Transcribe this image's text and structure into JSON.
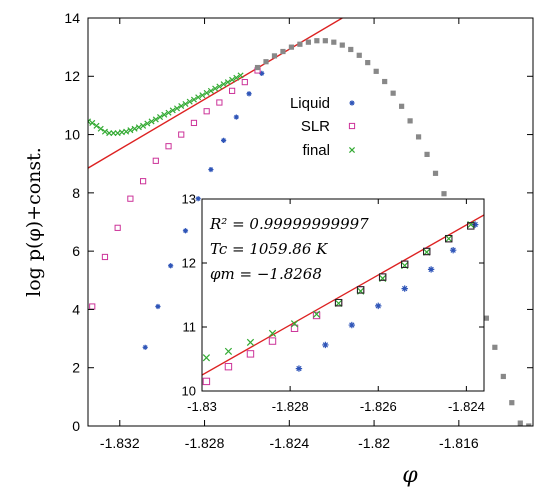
{
  "chart_data": [
    {
      "type": "scatter",
      "xlabel": "φ",
      "ylabel": "log p(φ)+const.",
      "xlim": [
        -1.8335,
        -1.8125
      ],
      "ylim": [
        0,
        14
      ],
      "xticks": [
        -1.832,
        -1.828,
        -1.824,
        -1.82,
        -1.816
      ],
      "xtick_labels": [
        "-1.832",
        "-1.828",
        "-1.824",
        "-1.82",
        "-1.816"
      ],
      "yticks": [
        0,
        2,
        4,
        6,
        8,
        10,
        12,
        14
      ],
      "ytick_labels": [
        "0",
        "2",
        "4",
        "6",
        "8",
        "10",
        "12",
        "14"
      ],
      "legend": [
        "Liquid",
        "SLR",
        "final"
      ],
      "legend_position": "right",
      "grid": false,
      "series": [
        {
          "name": "Liquid",
          "marker": "asterisk",
          "color": "#2f55b8",
          "x": [
            -1.8308,
            -1.8302,
            -1.8296,
            -1.8289,
            -1.8283,
            -1.8277,
            -1.8271,
            -1.8265,
            -1.8259,
            -1.8253
          ],
          "y": [
            2.7,
            4.1,
            5.5,
            6.7,
            7.8,
            8.8,
            9.8,
            10.6,
            11.4,
            12.1
          ]
        },
        {
          "name": "SLR",
          "marker": "open-square",
          "color": "#cc3399",
          "x": [
            -1.8333,
            -1.8327,
            -1.8321,
            -1.8315,
            -1.8309,
            -1.8303,
            -1.8297,
            -1.8291,
            -1.8285,
            -1.8279,
            -1.8273,
            -1.8267,
            -1.8261,
            -1.8255
          ],
          "y": [
            4.1,
            5.8,
            6.8,
            7.8,
            8.4,
            9.1,
            9.6,
            10.0,
            10.4,
            10.8,
            11.1,
            11.5,
            11.8,
            12.2
          ]
        },
        {
          "name": "final",
          "marker": "cross",
          "color": "#33aa33",
          "x": [
            -1.8335,
            -1.8333,
            -1.8331,
            -1.8329,
            -1.8327,
            -1.8325,
            -1.8323,
            -1.8321,
            -1.8319,
            -1.8317,
            -1.8315,
            -1.8313,
            -1.8311,
            -1.8309,
            -1.8307,
            -1.8305,
            -1.8303,
            -1.8301,
            -1.8299,
            -1.8297,
            -1.8295,
            -1.8293,
            -1.8291,
            -1.8289,
            -1.8287,
            -1.8285,
            -1.8283,
            -1.8281,
            -1.8279,
            -1.8277,
            -1.8275,
            -1.8273,
            -1.8271,
            -1.8269,
            -1.8267,
            -1.8265,
            -1.8263
          ],
          "y": [
            10.45,
            10.4,
            10.3,
            10.2,
            10.1,
            10.05,
            10.05,
            10.05,
            10.08,
            10.1,
            10.15,
            10.2,
            10.25,
            10.3,
            10.38,
            10.45,
            10.52,
            10.6,
            10.68,
            10.75,
            10.83,
            10.9,
            10.98,
            11.05,
            11.13,
            11.2,
            11.28,
            11.35,
            11.43,
            11.5,
            11.58,
            11.65,
            11.73,
            11.8,
            11.88,
            11.95,
            12.03
          ]
        },
        {
          "name": "",
          "marker": "filled-square",
          "color": "#888888",
          "x": [
            -1.8255,
            -1.8251,
            -1.8247,
            -1.8243,
            -1.8239,
            -1.8235,
            -1.8231,
            -1.8227,
            -1.8223,
            -1.8219,
            -1.8215,
            -1.8211,
            -1.8207,
            -1.8203,
            -1.8199,
            -1.8195,
            -1.8191,
            -1.8187,
            -1.8183,
            -1.8179,
            -1.8175,
            -1.8171,
            -1.8167,
            -1.8163,
            -1.8159,
            -1.8155,
            -1.8151,
            -1.8147,
            -1.8143,
            -1.8139,
            -1.8135,
            -1.8131,
            -1.8127
          ],
          "y": [
            12.3,
            12.5,
            12.7,
            12.85,
            13.0,
            13.1,
            13.17,
            13.22,
            13.22,
            13.17,
            13.07,
            12.92,
            12.72,
            12.47,
            12.17,
            11.82,
            11.42,
            10.97,
            10.47,
            9.92,
            9.32,
            8.67,
            7.97,
            7.22,
            6.42,
            5.57,
            4.67,
            3.7,
            2.7,
            1.7,
            0.8,
            0.1,
            0.0
          ]
        }
      ],
      "fit_line": {
        "x": [
          -1.8335,
          -1.8215
        ],
        "y": [
          8.85,
          14.0
        ],
        "color": "#dd2222"
      }
    },
    {
      "type": "scatter",
      "title": "",
      "xlim": [
        -1.83,
        -1.8236
      ],
      "ylim": [
        10,
        13
      ],
      "xticks": [
        -1.83,
        -1.828,
        -1.826,
        -1.824
      ],
      "xtick_labels": [
        "-1.83",
        "-1.828",
        "-1.826",
        "-1.824"
      ],
      "yticks": [
        10,
        11,
        12,
        13
      ],
      "ytick_labels": [
        "10",
        "11",
        "12",
        "13"
      ],
      "annotations": [
        "R² = 0.99999999997",
        "Tc = 1059.86 K",
        "φm = −1.8268"
      ],
      "series": [
        {
          "name": "Liquid",
          "marker": "asterisk",
          "color": "#2f55b8",
          "x": [
            -1.8278,
            -1.8272,
            -1.8266,
            -1.826,
            -1.8254,
            -1.8248,
            -1.8243,
            -1.8238
          ],
          "y": [
            10.35,
            10.72,
            11.03,
            11.33,
            11.6,
            11.9,
            12.2,
            12.6
          ]
        },
        {
          "name": "SLR",
          "marker": "open-square",
          "color": "#cc3399",
          "x": [
            -1.8299,
            -1.8294,
            -1.8289,
            -1.8284,
            -1.8279,
            -1.8274,
            -1.8269,
            -1.8264,
            -1.8259,
            -1.8254,
            -1.8249,
            -1.8244,
            -1.8239
          ],
          "y": [
            10.15,
            10.38,
            10.58,
            10.78,
            10.98,
            11.18,
            11.38,
            11.58,
            11.78,
            11.98,
            12.18,
            12.38,
            12.58
          ]
        },
        {
          "name": "final",
          "marker": "cross",
          "color": "#33aa33",
          "x": [
            -1.8299,
            -1.8294,
            -1.8289,
            -1.8284,
            -1.8279,
            -1.8274,
            -1.8269,
            -1.8264,
            -1.8259,
            -1.8254,
            -1.8249,
            -1.8244,
            -1.8239
          ],
          "y": [
            10.52,
            10.62,
            10.76,
            10.9,
            11.05,
            11.2,
            11.37,
            11.56,
            11.76,
            11.96,
            12.17,
            12.38,
            12.6
          ]
        },
        {
          "name": "",
          "marker": "open-square",
          "color": "#222222",
          "x": [
            -1.8269,
            -1.8264,
            -1.8259,
            -1.8254,
            -1.8249,
            -1.8244,
            -1.8239
          ],
          "y": [
            11.38,
            11.58,
            11.78,
            11.98,
            12.18,
            12.38,
            12.58
          ]
        }
      ],
      "fit_line": {
        "x": [
          -1.83,
          -1.8236
        ],
        "y": [
          10.25,
          12.75
        ],
        "color": "#dd2222"
      }
    }
  ]
}
